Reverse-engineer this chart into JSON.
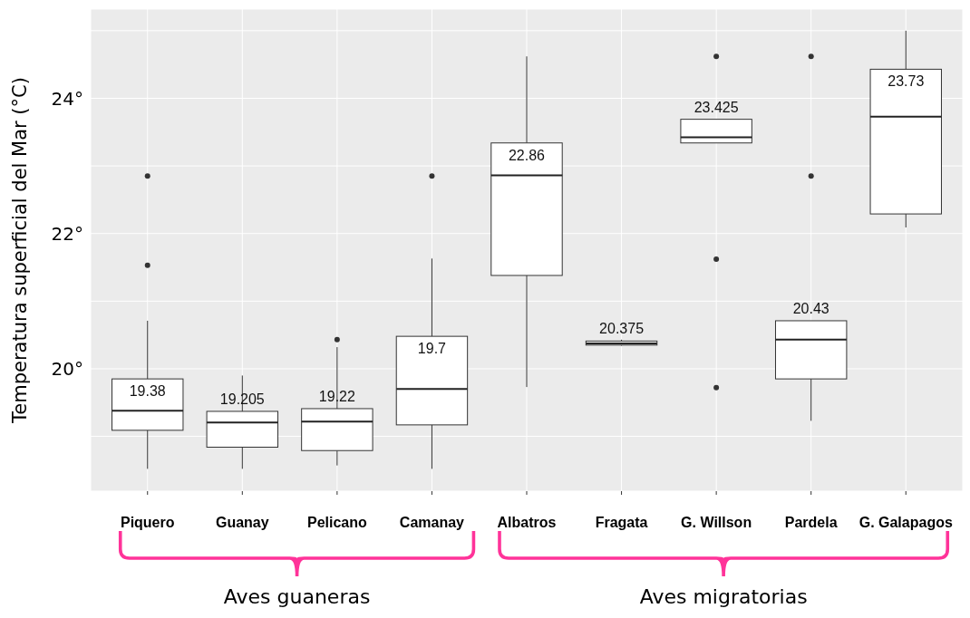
{
  "chart_data": {
    "type": "box",
    "ylabel": "Temperatura superficial del Mar (°C)",
    "categories": [
      "Piquero",
      "Guanay",
      "Pelicano",
      "Camanay",
      "Albatros",
      "Fragata",
      "G. Willson",
      "Pardela",
      "G. Galapagos"
    ],
    "boxes": [
      {
        "low": 18.52,
        "q1": 19.09,
        "median": 19.38,
        "q3": 19.85,
        "high": 20.71,
        "outliers": [
          22.85,
          21.53
        ]
      },
      {
        "low": 18.52,
        "q1": 18.84,
        "median": 19.205,
        "q3": 19.37,
        "high": 19.9
      },
      {
        "low": 18.57,
        "q1": 18.79,
        "median": 19.22,
        "q3": 19.41,
        "high": 20.32,
        "outliers": [
          20.43
        ]
      },
      {
        "low": 18.52,
        "q1": 19.17,
        "median": 19.7,
        "q3": 20.48,
        "high": 21.63,
        "outliers": [
          22.85
        ]
      },
      {
        "low": 19.73,
        "q1": 21.38,
        "median": 22.86,
        "q3": 23.34,
        "high": 24.62
      },
      {
        "low": 20.34,
        "q1": 20.35,
        "median": 20.375,
        "q3": 20.41,
        "high": 20.43
      },
      {
        "low": 23.34,
        "q1": 23.34,
        "median": 23.425,
        "q3": 23.69,
        "high": 23.69,
        "outliers": [
          24.62,
          21.62,
          19.72
        ]
      },
      {
        "low": 19.23,
        "q1": 19.85,
        "median": 20.43,
        "q3": 20.71,
        "high": 20.71,
        "outliers": [
          24.62,
          22.85
        ]
      },
      {
        "low": 22.09,
        "q1": 22.29,
        "median": 23.73,
        "q3": 24.43,
        "high": 25.0
      }
    ],
    "value_labels": [
      "19.38",
      "19.205",
      "19.22",
      "19.7",
      "22.86",
      "20.375",
      "23.425",
      "20.43",
      "23.73"
    ],
    "ylim": [
      18.19,
      25.32
    ],
    "yticks": [
      {
        "value": 19,
        "label": null
      },
      {
        "value": 20,
        "label": "20°"
      },
      {
        "value": 21,
        "label": null
      },
      {
        "value": 22,
        "label": "22°"
      },
      {
        "value": 23,
        "label": null
      },
      {
        "value": 24,
        "label": "24°"
      },
      {
        "value": 25,
        "label": null
      }
    ],
    "grid": true,
    "annotations": [
      "Aves guaneras",
      "Aves migratorias"
    ]
  }
}
